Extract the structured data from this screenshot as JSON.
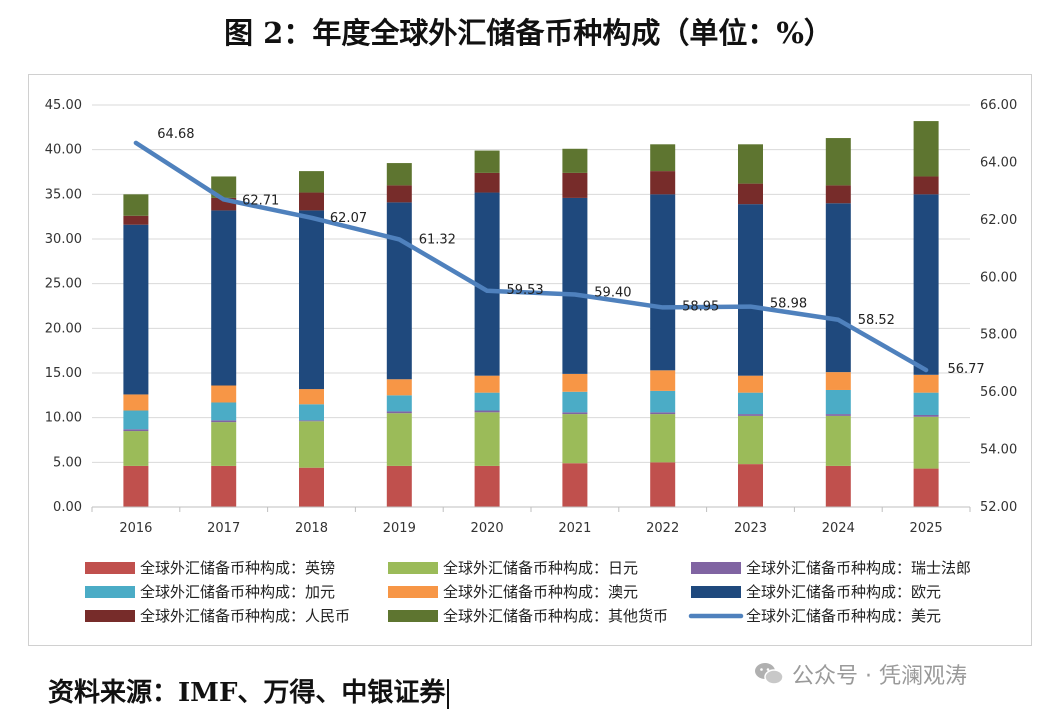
{
  "title": "图 2：年度全球外汇储备币种构成（单位：%）",
  "source": "资料来源：IMF、万得、中银证券",
  "watermark": "公众号 · 凭澜观涛",
  "chart_data": {
    "type": "bar",
    "stacked": true,
    "title": "图 2：年度全球外汇储备币种构成（单位：%）",
    "categories": [
      "2016",
      "2017",
      "2018",
      "2019",
      "2020",
      "2021",
      "2022",
      "2023",
      "2024",
      "2025"
    ],
    "y_left": {
      "min": 0,
      "max": 45,
      "step": 5,
      "decimals": 2
    },
    "y_right": {
      "min": 52,
      "max": 66,
      "step": 2,
      "decimals": 2
    },
    "series": [
      {
        "name": "全球外汇储备币种构成：英镑",
        "color": "#c0504d",
        "axis": "left",
        "values": [
          4.6,
          4.6,
          4.4,
          4.6,
          4.6,
          4.9,
          5.0,
          4.8,
          4.6,
          4.3
        ]
      },
      {
        "name": "全球外汇储备币种构成：日元",
        "color": "#9bbb59",
        "axis": "left",
        "values": [
          3.9,
          4.9,
          5.2,
          5.9,
          6.0,
          5.5,
          5.4,
          5.4,
          5.6,
          5.8
        ]
      },
      {
        "name": "全球外汇储备币种构成：瑞士法郎",
        "color": "#8064a2",
        "axis": "left",
        "values": [
          0.2,
          0.2,
          0.1,
          0.2,
          0.2,
          0.2,
          0.2,
          0.2,
          0.2,
          0.2
        ]
      },
      {
        "name": "全球外汇储备币种构成：加元",
        "color": "#4bacc6",
        "axis": "left",
        "values": [
          2.1,
          2.0,
          1.8,
          1.8,
          2.0,
          2.3,
          2.4,
          2.4,
          2.7,
          2.5
        ]
      },
      {
        "name": "全球外汇储备币种构成：澳元",
        "color": "#f79646",
        "axis": "left",
        "values": [
          1.8,
          1.9,
          1.7,
          1.8,
          1.9,
          2.0,
          2.3,
          1.9,
          2.0,
          2.0
        ]
      },
      {
        "name": "全球外汇储备币种构成：欧元",
        "color": "#1f497d",
        "axis": "left",
        "values": [
          19.0,
          19.6,
          20.0,
          19.8,
          20.5,
          19.7,
          19.7,
          19.2,
          18.9,
          20.2
        ]
      },
      {
        "name": "全球外汇储备币种构成：人民币",
        "color": "#772c2a",
        "axis": "left",
        "values": [
          1.0,
          1.4,
          2.0,
          1.9,
          2.2,
          2.8,
          2.6,
          2.3,
          2.0,
          2.0
        ]
      },
      {
        "name": "全球外汇储备币种构成：其他货币",
        "color": "#5e7530",
        "axis": "left",
        "values": [
          2.4,
          2.4,
          2.4,
          2.5,
          2.5,
          2.7,
          3.0,
          4.4,
          5.3,
          6.2
        ]
      },
      {
        "name": "全球外汇储备币种构成：美元",
        "color": "#4f81bd",
        "axis": "right",
        "type": "line",
        "values": [
          64.68,
          62.71,
          62.07,
          61.32,
          59.53,
          59.4,
          58.95,
          58.98,
          58.52,
          56.77
        ],
        "labels": [
          "64.68",
          "62.71",
          "62.07",
          "61.32",
          "59.53",
          "59.40",
          "58.95",
          "58.98",
          "58.52",
          "56.77"
        ]
      }
    ],
    "legend_position": "bottom",
    "grid": "horizontal"
  }
}
